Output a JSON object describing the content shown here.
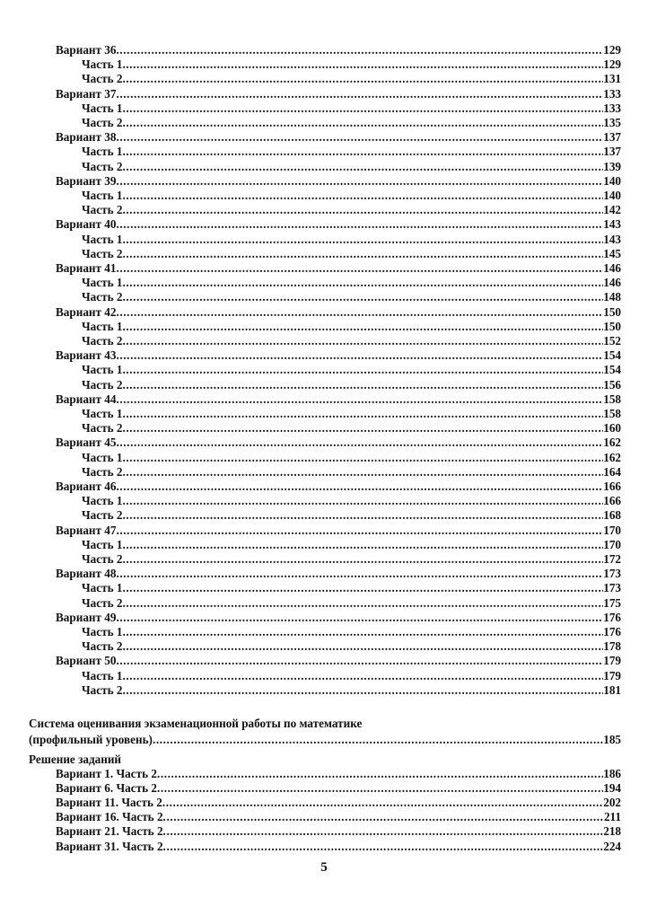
{
  "toc": [
    {
      "label": "Вариант 36",
      "page": "129",
      "parts": [
        {
          "label": "Часть 1",
          "page": "129"
        },
        {
          "label": "Часть 2",
          "page": "131"
        }
      ]
    },
    {
      "label": "Вариант 37",
      "page": "133",
      "parts": [
        {
          "label": "Часть 1",
          "page": "133"
        },
        {
          "label": "Часть 2",
          "page": "135"
        }
      ]
    },
    {
      "label": "Вариант 38",
      "page": "137",
      "parts": [
        {
          "label": "Часть 1 ",
          "page": "137"
        },
        {
          "label": "Часть 2",
          "page": "139"
        }
      ]
    },
    {
      "label": "Вариант 39",
      "page": "140",
      "parts": [
        {
          "label": "Часть 1",
          "page": "140"
        },
        {
          "label": "Часть 2",
          "page": "142"
        }
      ]
    },
    {
      "label": "Вариант 40",
      "page": "143",
      "parts": [
        {
          "label": "Часть 1",
          "page": "143"
        },
        {
          "label": "Часть 2",
          "page": "145"
        }
      ]
    },
    {
      "label": "Вариант 41",
      "page": "146",
      "parts": [
        {
          "label": "Часть 1",
          "page": "146"
        },
        {
          "label": "Часть 2",
          "page": "148"
        }
      ]
    },
    {
      "label": "Вариант 42",
      "page": "150",
      "parts": [
        {
          "label": "Часть 1",
          "page": "150"
        },
        {
          "label": "Часть 2",
          "page": "152"
        }
      ]
    },
    {
      "label": "Вариант 43",
      "page": "154",
      "parts": [
        {
          "label": "Часть 1",
          "page": "154"
        },
        {
          "label": "Часть 2",
          "page": "156"
        }
      ]
    },
    {
      "label": "Вариант 44",
      "page": "158",
      "parts": [
        {
          "label": "Часть 1",
          "page": "158"
        },
        {
          "label": "Часть 2",
          "page": "160"
        }
      ]
    },
    {
      "label": "Вариант 45",
      "page": "162",
      "parts": [
        {
          "label": "Часть 1",
          "page": "162"
        },
        {
          "label": "Часть 2",
          "page": "164"
        }
      ]
    },
    {
      "label": "Вариант 46",
      "page": "166",
      "parts": [
        {
          "label": "Часть 1",
          "page": "166"
        },
        {
          "label": "Часть 2",
          "page": "168"
        }
      ]
    },
    {
      "label": "Вариант 47",
      "page": "170",
      "parts": [
        {
          "label": "Часть 1",
          "page": "170"
        },
        {
          "label": "Часть 2",
          "page": "172"
        }
      ]
    },
    {
      "label": "Вариант 48",
      "page": "173",
      "parts": [
        {
          "label": "Часть 1",
          "page": "173"
        },
        {
          "label": "Часть 2",
          "page": "175"
        }
      ]
    },
    {
      "label": "Вариант 49",
      "page": "176",
      "parts": [
        {
          "label": "Часть 1",
          "page": "176"
        },
        {
          "label": "Часть 2",
          "page": "178"
        }
      ]
    },
    {
      "label": "Вариант 50",
      "page": "179",
      "parts": [
        {
          "label": "Часть 1",
          "page": "179"
        },
        {
          "label": "Часть 2",
          "page": "181"
        }
      ]
    }
  ],
  "grading": {
    "line1": "Система оценивания экзаменационной работы по математике",
    "line2": "(профильный уровень)",
    "page": "185"
  },
  "solutions": {
    "title": "Решение заданий",
    "items": [
      {
        "label": "Вариант 1. Часть 2",
        "page": "186"
      },
      {
        "label": "Вариант 6. Часть 2",
        "page": "194"
      },
      {
        "label": "Вариант 11. Часть 2",
        "page": "202"
      },
      {
        "label": "Вариант 16. Часть 2",
        "page": "211"
      },
      {
        "label": "Вариант 21. Часть 2",
        "page": "218"
      },
      {
        "label": "Вариант 31. Часть 2",
        "page": "224"
      }
    ]
  },
  "page_number": "5"
}
